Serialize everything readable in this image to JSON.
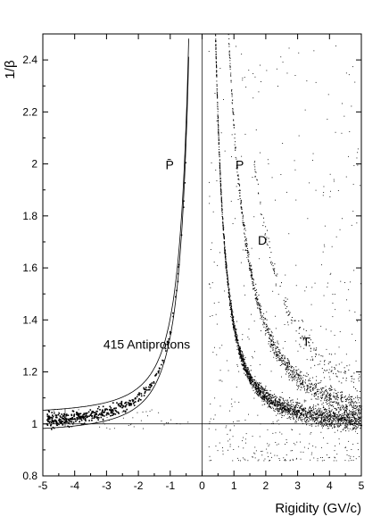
{
  "chart_data": {
    "type": "scatter",
    "title": "",
    "xlabel": "Rigidity (GV/c)",
    "ylabel": "1/β",
    "xlim": [
      -5,
      5
    ],
    "ylim": [
      0.8,
      2.5
    ],
    "x_ticks": [
      "-5",
      "-4",
      "-3",
      "-2",
      "-1",
      "0",
      "1",
      "2",
      "3",
      "4",
      "5"
    ],
    "y_ticks": [
      "0.8",
      "1",
      "1.2",
      "1.4",
      "1.6",
      "1.8",
      "2",
      "2.2",
      "2.4"
    ],
    "grid": false,
    "reference_lines": [
      {
        "axis": "x",
        "value": 0
      },
      {
        "axis": "y",
        "value": 1
      }
    ],
    "series": [
      {
        "name": "P̄",
        "mass_GeV": 0.938,
        "charge_sign": -1,
        "x_range": [
          -4.9,
          -0.43
        ],
        "approx_points": 415
      },
      {
        "name": "P",
        "mass_GeV": 0.938,
        "charge_sign": 1,
        "x_range": [
          0.35,
          5
        ]
      },
      {
        "name": "D",
        "mass_GeV": 1.876,
        "charge_sign": 1,
        "x_range": [
          0.8,
          5
        ]
      },
      {
        "name": "T",
        "mass_GeV": 2.809,
        "charge_sign": 1,
        "x_range": [
          1.6,
          5
        ]
      }
    ],
    "selection_band": {
      "mass_GeV": 0.938,
      "y_half_width": 0.035,
      "x_range": [
        -5,
        -0.38
      ]
    },
    "annotations": [
      {
        "text": "P̄",
        "x": -1.15,
        "y": 1.98
      },
      {
        "text": "P",
        "x": 1.05,
        "y": 1.98
      },
      {
        "text": "D",
        "x": 1.75,
        "y": 1.69
      },
      {
        "text": "T",
        "x": 3.15,
        "y": 1.3
      },
      {
        "text": "415 Antiprotons",
        "x": -3.1,
        "y": 1.29
      }
    ]
  }
}
